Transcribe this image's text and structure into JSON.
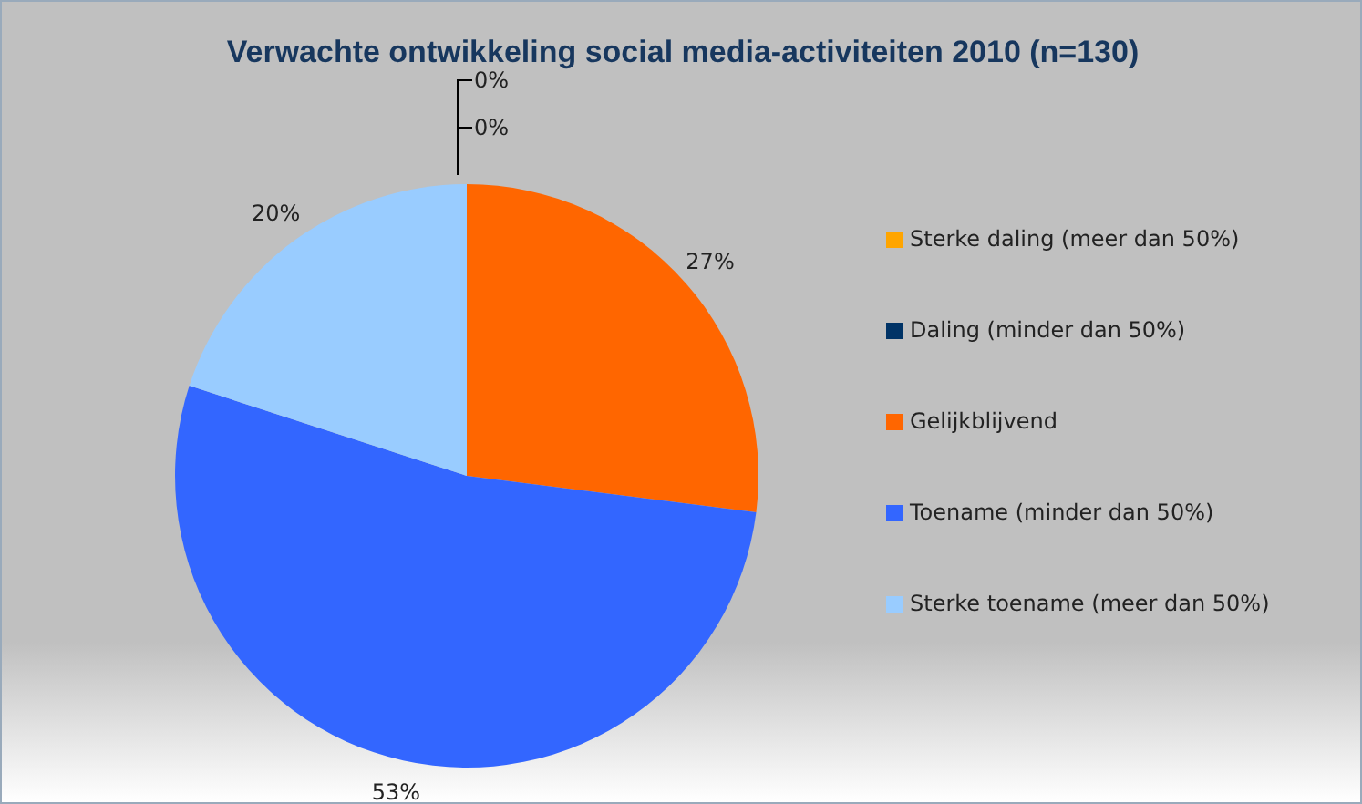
{
  "chart_data": {
    "type": "pie",
    "title": "Verwachte ontwikkeling social media-activiteiten 2010 (n=130)",
    "categories": [
      "Sterke daling (meer dan 50%)",
      "Daling (minder dan 50%)",
      "Gelijkblijvend",
      "Toename (minder dan 50%)",
      "Sterke toename (meer dan 50%)"
    ],
    "values": [
      0,
      0,
      27,
      53,
      20
    ],
    "colors": [
      "#ffa500",
      "#003366",
      "#ff6600",
      "#3366ff",
      "#99ccff"
    ],
    "value_labels": [
      "0%",
      "0%",
      "27%",
      "53%",
      "20%"
    ],
    "legend": "right"
  }
}
